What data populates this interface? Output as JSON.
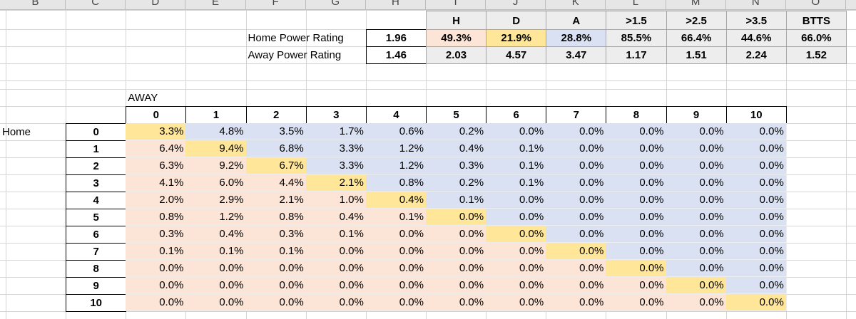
{
  "column_headers": [
    "B",
    "C",
    "D",
    "E",
    "F",
    "G",
    "H",
    "I",
    "J",
    "K",
    "L",
    "M",
    "N",
    "O"
  ],
  "ratings": {
    "rows": [
      {
        "label": "Home Power Rating",
        "value": "1.96"
      },
      {
        "label": "Away Power Rating",
        "value": "1.46"
      }
    ]
  },
  "markets": {
    "headers": [
      "H",
      "D",
      "A",
      ">1.5",
      ">2.5",
      ">3.5",
      "BTTS"
    ],
    "probabilities": [
      "49.3%",
      "21.9%",
      "28.8%",
      "85.5%",
      "66.4%",
      "44.6%",
      "66.0%"
    ],
    "odds": [
      "2.03",
      "4.57",
      "3.47",
      "1.17",
      "1.51",
      "2.24",
      "1.52"
    ]
  },
  "matrix": {
    "home_label": "Home",
    "away_label": "AWAY",
    "goals": [
      "0",
      "1",
      "2",
      "3",
      "4",
      "5",
      "6",
      "7",
      "8",
      "9",
      "10"
    ],
    "rows": [
      [
        "3.3%",
        "4.8%",
        "3.5%",
        "1.7%",
        "0.6%",
        "0.2%",
        "0.0%",
        "0.0%",
        "0.0%",
        "0.0%",
        "0.0%"
      ],
      [
        "6.4%",
        "9.4%",
        "6.8%",
        "3.3%",
        "1.2%",
        "0.4%",
        "0.1%",
        "0.0%",
        "0.0%",
        "0.0%",
        "0.0%"
      ],
      [
        "6.3%",
        "9.2%",
        "6.7%",
        "3.3%",
        "1.2%",
        "0.3%",
        "0.1%",
        "0.0%",
        "0.0%",
        "0.0%",
        "0.0%"
      ],
      [
        "4.1%",
        "6.0%",
        "4.4%",
        "2.1%",
        "0.8%",
        "0.2%",
        "0.1%",
        "0.0%",
        "0.0%",
        "0.0%",
        "0.0%"
      ],
      [
        "2.0%",
        "2.9%",
        "2.1%",
        "1.0%",
        "0.4%",
        "0.1%",
        "0.0%",
        "0.0%",
        "0.0%",
        "0.0%",
        "0.0%"
      ],
      [
        "0.8%",
        "1.2%",
        "0.8%",
        "0.4%",
        "0.1%",
        "0.0%",
        "0.0%",
        "0.0%",
        "0.0%",
        "0.0%",
        "0.0%"
      ],
      [
        "0.3%",
        "0.4%",
        "0.3%",
        "0.1%",
        "0.0%",
        "0.0%",
        "0.0%",
        "0.0%",
        "0.0%",
        "0.0%",
        "0.0%"
      ],
      [
        "0.1%",
        "0.1%",
        "0.1%",
        "0.0%",
        "0.0%",
        "0.0%",
        "0.0%",
        "0.0%",
        "0.0%",
        "0.0%",
        "0.0%"
      ],
      [
        "0.0%",
        "0.0%",
        "0.0%",
        "0.0%",
        "0.0%",
        "0.0%",
        "0.0%",
        "0.0%",
        "0.0%",
        "0.0%",
        "0.0%"
      ],
      [
        "0.0%",
        "0.0%",
        "0.0%",
        "0.0%",
        "0.0%",
        "0.0%",
        "0.0%",
        "0.0%",
        "0.0%",
        "0.0%",
        "0.0%"
      ],
      [
        "0.0%",
        "0.0%",
        "0.0%",
        "0.0%",
        "0.0%",
        "0.0%",
        "0.0%",
        "0.0%",
        "0.0%",
        "0.0%",
        "0.0%"
      ]
    ]
  }
}
